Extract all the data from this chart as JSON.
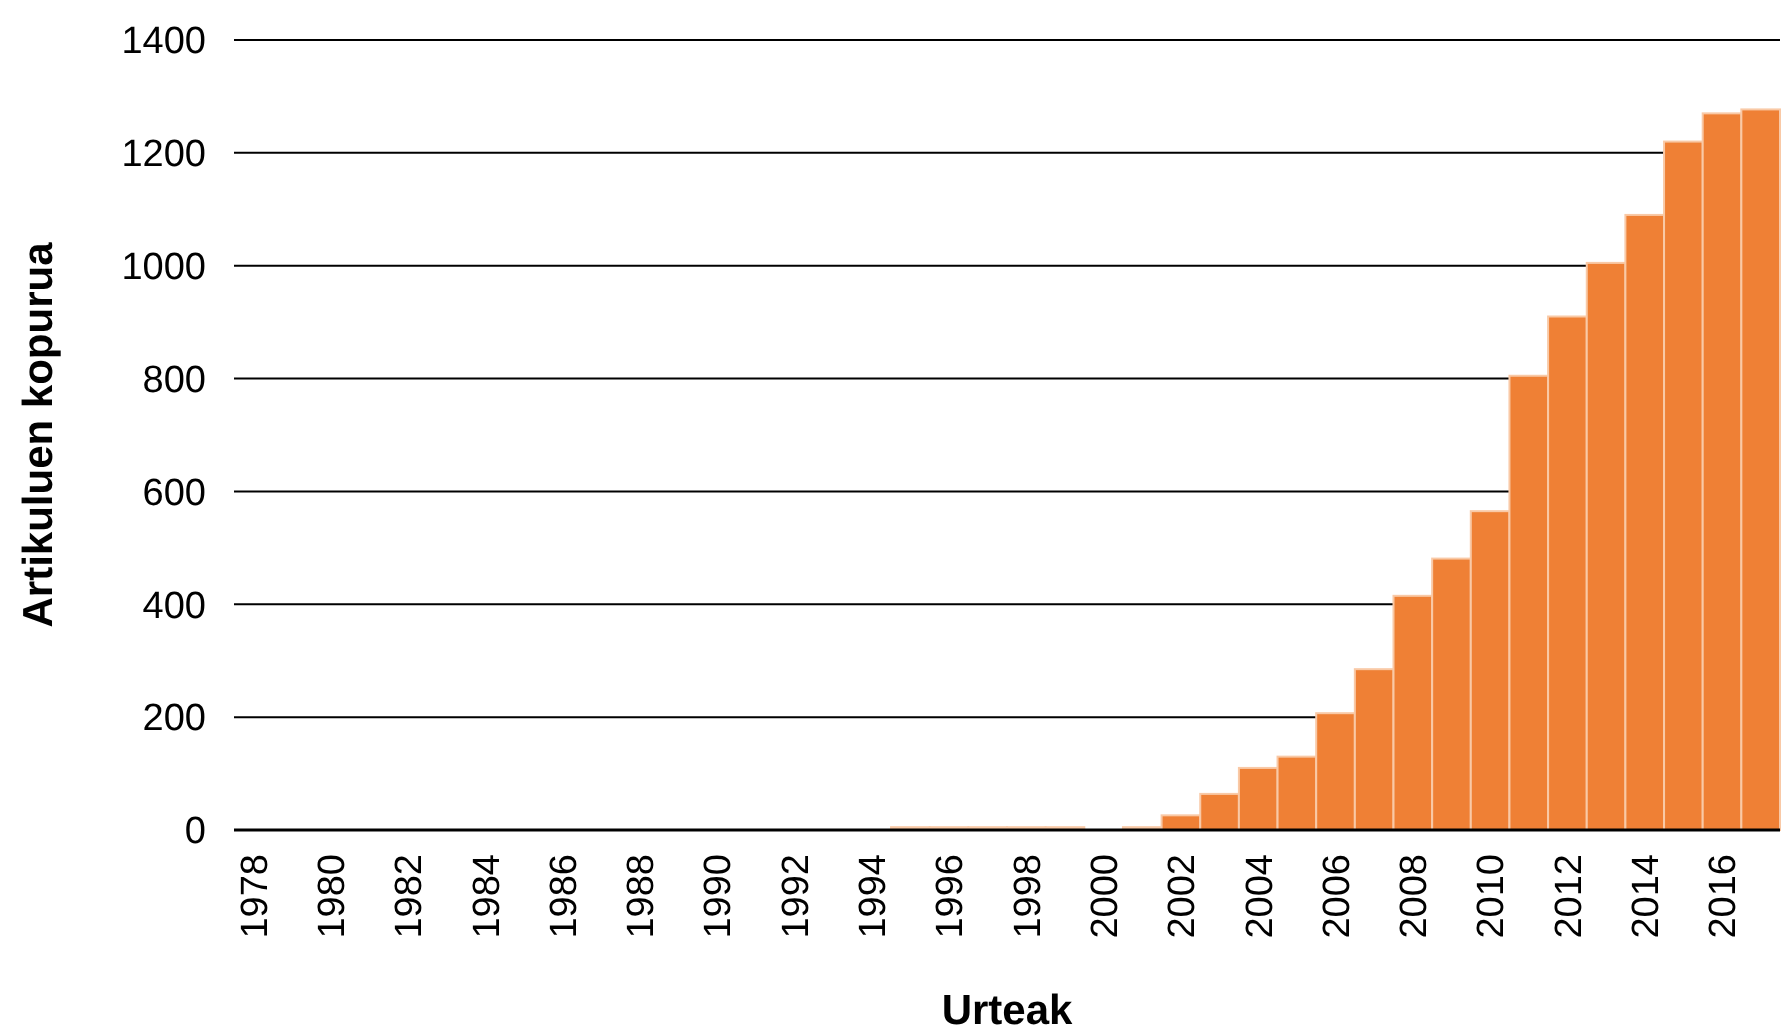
{
  "chart_data": {
    "type": "bar",
    "xlabel": "Urteak",
    "ylabel": "Artikuluen kopurua",
    "categories": [
      "1978",
      null,
      "1980",
      null,
      "1982",
      null,
      "1984",
      null,
      "1986",
      null,
      "1988",
      null,
      "1990",
      null,
      "1992",
      null,
      "1994",
      null,
      "1996",
      null,
      "1998",
      null,
      "2000",
      null,
      "2002",
      null,
      "2004",
      null,
      "2006",
      null,
      "2008",
      null,
      "2010",
      null,
      "2012",
      null,
      "2014",
      null,
      "2016",
      null
    ],
    "values": [
      0,
      0,
      0,
      0,
      0,
      0,
      0,
      0,
      0,
      0,
      0,
      0,
      0,
      0,
      0,
      0,
      0,
      5,
      5,
      5,
      5,
      5,
      0,
      5,
      26,
      64,
      110,
      130,
      207,
      285,
      415,
      481,
      565,
      805,
      910,
      1005,
      1090,
      1220,
      1270,
      1277
    ],
    "colors": [
      "#ef8035",
      "#ef8035",
      "#ef8035",
      "#ef8035",
      "#ef8035",
      "#ef8035",
      "#ef8035",
      "#ef8035",
      "#ef8035",
      "#ef8035",
      "#ef8035",
      "#ef8035",
      "#ef8035",
      "#ef8035",
      "#ef8035",
      "#ef8035",
      "#ef8035",
      "#f8c8a6",
      "#f8c8a6",
      "#f8c8a6",
      "#f8c8a6",
      "#f8c8a6",
      "#ef8035",
      "#f8c8a6",
      "#ef8035",
      "#ef8035",
      "#ef8035",
      "#ef8035",
      "#ef8035",
      "#ef8035",
      "#ef8035",
      "#ef8035",
      "#ef8035",
      "#ef8035",
      "#ef8035",
      "#ef8035",
      "#ef8035",
      "#ef8035",
      "#ef8035",
      "#ef8035"
    ],
    "ylim": [
      0,
      1400
    ],
    "yticks": [
      0,
      200,
      400,
      600,
      800,
      1000,
      1200,
      1400
    ],
    "grid": "y"
  }
}
